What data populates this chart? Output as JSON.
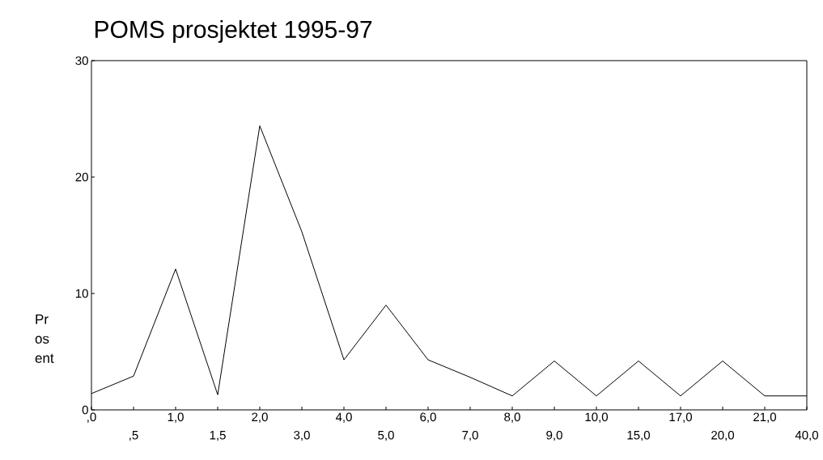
{
  "chart_data": {
    "type": "line",
    "title": "POMS prosjektet 1995-97",
    "ylabel": "Pr os ent",
    "categories": [
      ",0",
      ",5",
      "1,0",
      "1,5",
      "2,0",
      "3,0",
      "4,0",
      "5,0",
      "6,0",
      "7,0",
      "8,0",
      "9,0",
      "10,0",
      "15,0",
      "17,0",
      "20,0",
      "21,0",
      "40,0"
    ],
    "values": [
      1.4,
      2.9,
      12.1,
      1.3,
      24.4,
      15.3,
      4.3,
      9.0,
      4.3,
      2.8,
      1.2,
      4.2,
      1.2,
      4.2,
      1.2,
      4.2,
      1.2,
      1.2
    ],
    "color": "#000000",
    "ylim": [
      0,
      30
    ],
    "yticks": [
      0,
      10,
      20,
      30
    ],
    "marker": "none",
    "line_style": "solid"
  }
}
